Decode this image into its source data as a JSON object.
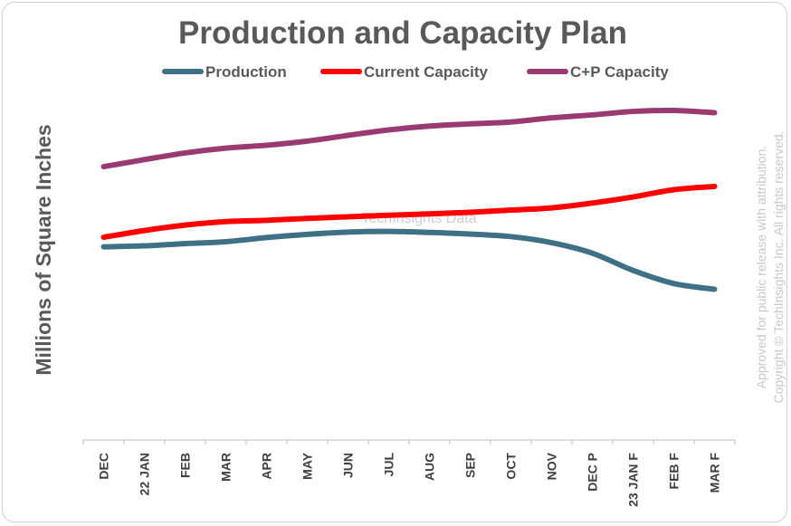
{
  "chart_data": {
    "type": "line",
    "title": "Production and Capacity Plan",
    "ylabel": "Millions of Square Inches",
    "xlabel": "",
    "categories": [
      "DEC",
      "22 JAN",
      "FEB",
      "MAR",
      "APR",
      "MAY",
      "JUN",
      "JUL",
      "AUG",
      "SEP",
      "OCT",
      "NOV",
      "DEC P",
      "23 JAN F",
      "FEB F",
      "MAR F"
    ],
    "ylim": [
      0,
      100
    ],
    "y_ticks_shown": false,
    "grid": false,
    "legend": "top",
    "series": [
      {
        "name": "Production",
        "color": "#3e7086",
        "values": [
          60.5,
          60.8,
          61.5,
          62.1,
          63.4,
          64.4,
          65.1,
          65.3,
          65.0,
          64.5,
          63.7,
          61.8,
          58.5,
          53.1,
          49.0,
          47.2
        ]
      },
      {
        "name": "Current Capacity",
        "color": "#ff0000",
        "values": [
          63.5,
          65.6,
          67.3,
          68.4,
          68.8,
          69.4,
          69.9,
          70.4,
          70.8,
          71.3,
          72.0,
          72.7,
          74.2,
          76.1,
          78.4,
          79.4
        ]
      },
      {
        "name": "C+P Capacity",
        "color": "#9a3a72",
        "values": [
          85.6,
          87.8,
          89.9,
          91.4,
          92.3,
          93.6,
          95.4,
          97.1,
          98.3,
          99.0,
          99.6,
          100.9,
          101.8,
          102.9,
          103.2,
          102.5
        ]
      }
    ],
    "watermark": "TechInsights Data",
    "side_note": [
      "Approved for public release with attribution.",
      "Copyright © TechInsights Inc.  All rights reserved."
    ]
  }
}
